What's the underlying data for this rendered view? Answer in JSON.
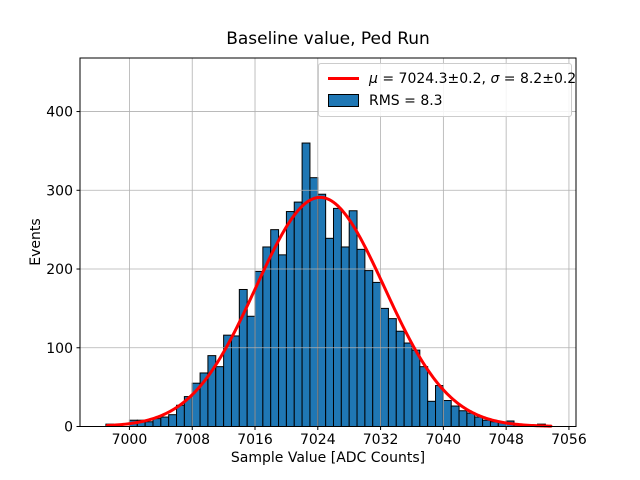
{
  "title": "Baseline value, Ped Run",
  "axes": {
    "xlabel": "Sample Value [ADC Counts]",
    "ylabel": "Events"
  },
  "legend": {
    "fit_entry": {
      "color": "#ff0000",
      "mu_symbol": "μ",
      "mu_rest": " = 7024.3±0.2, ",
      "sigma_symbol": "σ",
      "sigma_rest": " = 8.2±0.2"
    },
    "hist_entry": {
      "color": "#1f77b4",
      "label": "RMS = 8.3"
    }
  },
  "chart_data": {
    "type": "bar",
    "subtype": "histogram",
    "title": "Baseline value, Ped Run",
    "xlabel": "Sample Value [ADC Counts]",
    "ylabel": "Events",
    "xlim": [
      6993.7,
      7056.9
    ],
    "ylim": [
      0,
      468
    ],
    "xticks": [
      7000,
      7008,
      7016,
      7024,
      7032,
      7040,
      7048,
      7056
    ],
    "yticks": [
      0,
      100,
      200,
      300,
      400
    ],
    "grid": true,
    "grid_color": "#b0b0b0",
    "bar_color": "#1f77b4",
    "bar_edge_color": "#000000",
    "background_color": "#ffffff",
    "bin_width": 1,
    "bin_starts": [
      6997,
      6998,
      6999,
      7000,
      7001,
      7002,
      7003,
      7004,
      7005,
      7006,
      7007,
      7008,
      7009,
      7010,
      7011,
      7012,
      7013,
      7014,
      7015,
      7016,
      7017,
      7018,
      7019,
      7020,
      7021,
      7022,
      7023,
      7024,
      7025,
      7026,
      7027,
      7028,
      7029,
      7030,
      7031,
      7032,
      7033,
      7034,
      7035,
      7036,
      7037,
      7038,
      7039,
      7040,
      7041,
      7042,
      7043,
      7044,
      7045,
      7046,
      7047,
      7048,
      7049,
      7050,
      7051,
      7052
    ],
    "counts": [
      3,
      0,
      0,
      8,
      8,
      6,
      10,
      12,
      15,
      27,
      38,
      55,
      68,
      90,
      76,
      116,
      115,
      174,
      140,
      197,
      228,
      250,
      218,
      273,
      285,
      360,
      316,
      295,
      239,
      277,
      228,
      274,
      225,
      198,
      183,
      150,
      137,
      121,
      106,
      97,
      76,
      32,
      52,
      33,
      26,
      20,
      17,
      12,
      8,
      6,
      5,
      7,
      3,
      2,
      2,
      3
    ],
    "fit_curve": {
      "shape": "gaussian",
      "amplitude": 291,
      "mu": 7024.3,
      "sigma": 8.2,
      "x_range": [
        6997.2,
        7053.8
      ],
      "color": "#ff0000",
      "line_width": 3
    },
    "legend_entries": [
      "μ = 7024.3±0.2, σ = 8.2±0.2",
      "RMS = 8.3"
    ],
    "legend_position": "upper right"
  }
}
